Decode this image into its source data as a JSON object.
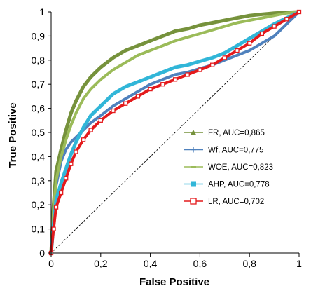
{
  "chart_data": {
    "type": "line",
    "title": "",
    "xlabel": "False Positive",
    "ylabel": "True Positive",
    "xlim": [
      0,
      1
    ],
    "ylim": [
      0,
      1
    ],
    "x_ticks": [
      "0",
      "0,2",
      "0,4",
      "0,6",
      "0,8",
      "1"
    ],
    "y_ticks": [
      "0",
      "0,1",
      "0,2",
      "0,3",
      "0,4",
      "0,5",
      "0,6",
      "0,7",
      "0,8",
      "0,9",
      "1"
    ],
    "grid": false,
    "legend_position": "right-center",
    "reference_line": {
      "x": [
        0,
        1
      ],
      "y": [
        0,
        1
      ],
      "style": "dashed"
    },
    "series": [
      {
        "name": "FR, AUC=0,865",
        "color": "#76923c",
        "marker": "triangle",
        "x": [
          0,
          0.01,
          0.02,
          0.04,
          0.06,
          0.08,
          0.1,
          0.13,
          0.16,
          0.2,
          0.25,
          0.3,
          0.35,
          0.4,
          0.45,
          0.5,
          0.55,
          0.6,
          0.65,
          0.7,
          0.75,
          0.8,
          0.85,
          0.9,
          0.95,
          1.0
        ],
        "y": [
          0,
          0.2,
          0.34,
          0.43,
          0.51,
          0.58,
          0.63,
          0.69,
          0.73,
          0.77,
          0.81,
          0.84,
          0.86,
          0.88,
          0.9,
          0.92,
          0.93,
          0.945,
          0.955,
          0.965,
          0.975,
          0.985,
          0.99,
          0.995,
          0.998,
          1.0
        ]
      },
      {
        "name": "Wf, AUC=0,775",
        "color": "#4f81bd",
        "marker": "plus",
        "x": [
          0,
          0.01,
          0.02,
          0.04,
          0.06,
          0.08,
          0.1,
          0.13,
          0.16,
          0.2,
          0.25,
          0.3,
          0.35,
          0.4,
          0.45,
          0.5,
          0.55,
          0.6,
          0.65,
          0.7,
          0.75,
          0.8,
          0.85,
          0.9,
          0.95,
          1.0
        ],
        "y": [
          0,
          0.15,
          0.28,
          0.38,
          0.43,
          0.46,
          0.48,
          0.51,
          0.54,
          0.57,
          0.61,
          0.64,
          0.67,
          0.7,
          0.72,
          0.74,
          0.75,
          0.765,
          0.78,
          0.8,
          0.82,
          0.84,
          0.87,
          0.9,
          0.95,
          1.0
        ]
      },
      {
        "name": "WOE, AUC=0,823",
        "color": "#9bbb59",
        "marker": "dash",
        "x": [
          0,
          0.01,
          0.02,
          0.04,
          0.06,
          0.08,
          0.1,
          0.13,
          0.16,
          0.2,
          0.25,
          0.3,
          0.35,
          0.4,
          0.45,
          0.5,
          0.55,
          0.6,
          0.65,
          0.7,
          0.75,
          0.8,
          0.85,
          0.9,
          0.95,
          1.0
        ],
        "y": [
          0,
          0.18,
          0.3,
          0.4,
          0.47,
          0.53,
          0.58,
          0.64,
          0.68,
          0.72,
          0.76,
          0.79,
          0.82,
          0.84,
          0.86,
          0.88,
          0.895,
          0.91,
          0.925,
          0.94,
          0.955,
          0.965,
          0.975,
          0.985,
          0.995,
          1.0
        ]
      },
      {
        "name": "AHP, AUC=0,778",
        "color": "#31b6d8",
        "marker": "square",
        "x": [
          0,
          0.01,
          0.02,
          0.04,
          0.06,
          0.08,
          0.1,
          0.13,
          0.16,
          0.2,
          0.25,
          0.3,
          0.35,
          0.4,
          0.45,
          0.5,
          0.55,
          0.6,
          0.65,
          0.7,
          0.75,
          0.8,
          0.85,
          0.9,
          0.95,
          1.0
        ],
        "y": [
          0,
          0.12,
          0.22,
          0.29,
          0.35,
          0.41,
          0.46,
          0.52,
          0.57,
          0.61,
          0.66,
          0.69,
          0.71,
          0.73,
          0.75,
          0.77,
          0.78,
          0.795,
          0.81,
          0.83,
          0.86,
          0.89,
          0.92,
          0.95,
          0.975,
          1.0
        ]
      },
      {
        "name": "LR, AUC=0,702",
        "color": "#e41a1c",
        "marker": "open-square",
        "x": [
          0,
          0.01,
          0.02,
          0.04,
          0.06,
          0.08,
          0.1,
          0.13,
          0.16,
          0.2,
          0.25,
          0.3,
          0.35,
          0.4,
          0.45,
          0.5,
          0.55,
          0.6,
          0.65,
          0.7,
          0.75,
          0.8,
          0.85,
          0.9,
          0.95,
          1.0
        ],
        "y": [
          0,
          0.1,
          0.19,
          0.25,
          0.31,
          0.37,
          0.42,
          0.47,
          0.51,
          0.55,
          0.59,
          0.62,
          0.65,
          0.68,
          0.7,
          0.72,
          0.74,
          0.76,
          0.78,
          0.81,
          0.84,
          0.87,
          0.91,
          0.94,
          0.97,
          1.0
        ]
      }
    ]
  }
}
